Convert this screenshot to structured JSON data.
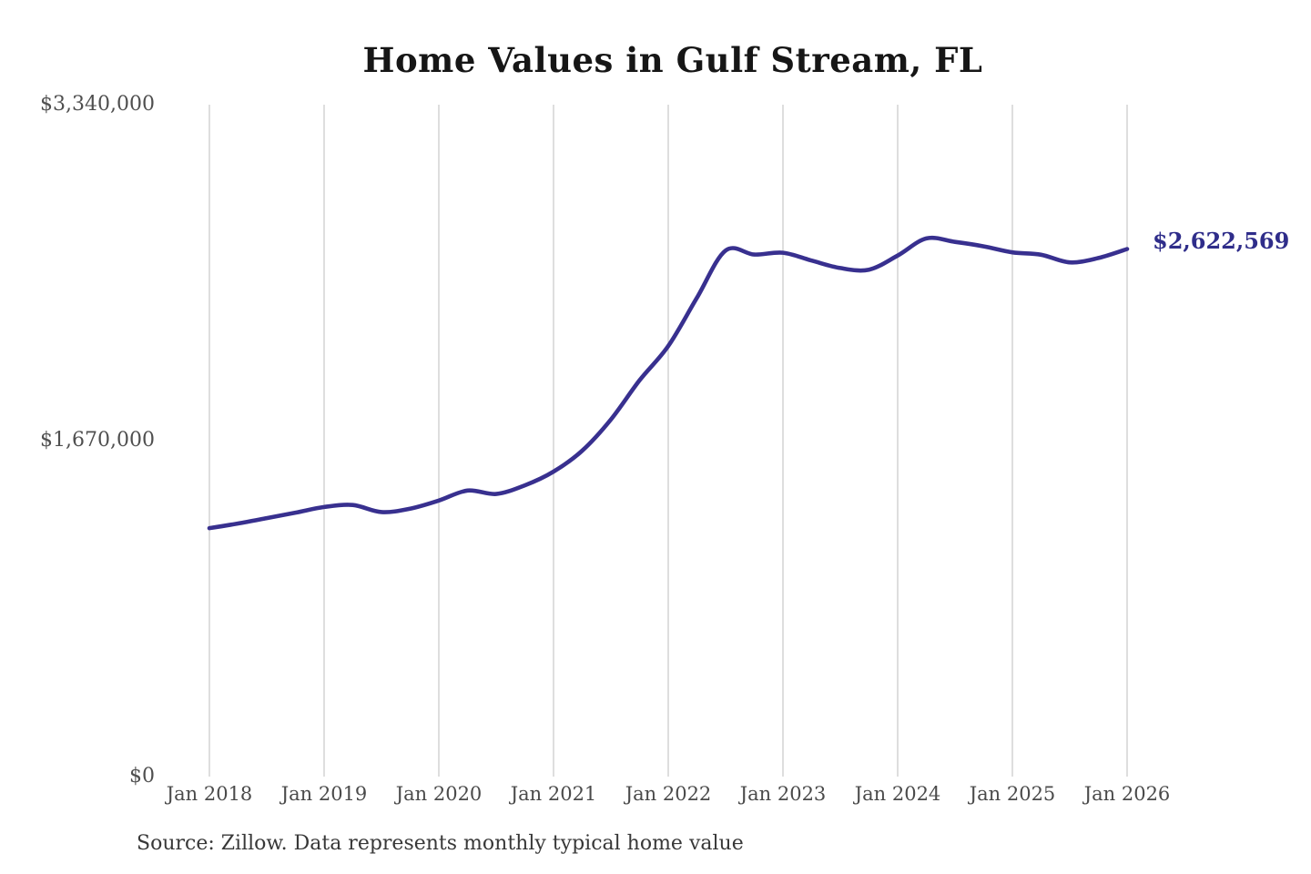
{
  "title": "Home Values in Gulf Stream, FL",
  "annotation": {
    "label": "$2,622,569"
  },
  "source": "Source: Zillow. Data represents monthly typical home value",
  "colors": {
    "line": "#38308f",
    "annotation": "#2f2d8a",
    "grid": "#c9c9c9",
    "title": "#161616",
    "y_axis_text": "#4f4f4f",
    "x_axis_text": "#4a4a4a",
    "source_text": "#383838",
    "background": "#ffffff"
  },
  "chart_data": {
    "type": "line",
    "title": "Home Values in Gulf Stream, FL",
    "xlabel": "",
    "ylabel": "",
    "ylim": [
      0,
      3340000
    ],
    "grid": "vertical-only",
    "legend": "none",
    "x_ticks": [
      "Jan 2018",
      "Jan 2019",
      "Jan 2020",
      "Jan 2021",
      "Jan 2022",
      "Jan 2023",
      "Jan 2024",
      "Jan 2025",
      "Jan 2026"
    ],
    "y_ticks": [
      {
        "label": "$0",
        "value": 0
      },
      {
        "label": "$1,670,000",
        "value": 1670000
      },
      {
        "label": "$3,340,000",
        "value": 3340000
      }
    ],
    "last_value_label": "$2,622,569",
    "last_value": 2622569,
    "series": [
      {
        "name": "Monthly typical home value",
        "points": [
          {
            "date": "2018-01",
            "value": 1235000
          },
          {
            "date": "2018-04",
            "value": 1258000
          },
          {
            "date": "2018-07",
            "value": 1285000
          },
          {
            "date": "2018-10",
            "value": 1312000
          },
          {
            "date": "2019-01",
            "value": 1340000
          },
          {
            "date": "2019-04",
            "value": 1350000
          },
          {
            "date": "2019-07",
            "value": 1315000
          },
          {
            "date": "2019-10",
            "value": 1332000
          },
          {
            "date": "2020-01",
            "value": 1372000
          },
          {
            "date": "2020-04",
            "value": 1422000
          },
          {
            "date": "2020-07",
            "value": 1405000
          },
          {
            "date": "2020-10",
            "value": 1448000
          },
          {
            "date": "2021-01",
            "value": 1516000
          },
          {
            "date": "2021-04",
            "value": 1620000
          },
          {
            "date": "2021-07",
            "value": 1775000
          },
          {
            "date": "2021-10",
            "value": 1970000
          },
          {
            "date": "2022-01",
            "value": 2140000
          },
          {
            "date": "2022-04",
            "value": 2380000
          },
          {
            "date": "2022-07",
            "value": 2615000
          },
          {
            "date": "2022-10",
            "value": 2595000
          },
          {
            "date": "2023-01",
            "value": 2604000
          },
          {
            "date": "2023-04",
            "value": 2565000
          },
          {
            "date": "2023-07",
            "value": 2528000
          },
          {
            "date": "2023-10",
            "value": 2520000
          },
          {
            "date": "2024-01",
            "value": 2590000
          },
          {
            "date": "2024-04",
            "value": 2675000
          },
          {
            "date": "2024-07",
            "value": 2658000
          },
          {
            "date": "2024-10",
            "value": 2636000
          },
          {
            "date": "2025-01",
            "value": 2606000
          },
          {
            "date": "2025-04",
            "value": 2594000
          },
          {
            "date": "2025-07",
            "value": 2556000
          },
          {
            "date": "2025-10",
            "value": 2578000
          },
          {
            "date": "2026-01",
            "value": 2622569
          }
        ]
      }
    ]
  }
}
